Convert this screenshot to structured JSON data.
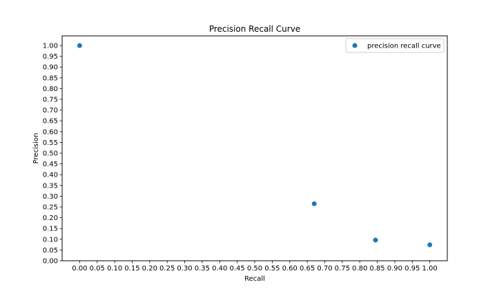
{
  "chart_data": {
    "type": "scatter",
    "title": "Precision Recall Curve",
    "xlabel": "Recall",
    "ylabel": "Precision",
    "xlim": [
      -0.05,
      1.05
    ],
    "ylim": [
      0.0,
      1.045
    ],
    "xticks": [
      "0.00",
      "0.05",
      "0.10",
      "0.15",
      "0.20",
      "0.25",
      "0.30",
      "0.35",
      "0.40",
      "0.45",
      "0.50",
      "0.55",
      "0.60",
      "0.65",
      "0.70",
      "0.75",
      "0.80",
      "0.85",
      "0.90",
      "0.95",
      "1.00"
    ],
    "yticks": [
      "0.00",
      "0.05",
      "0.10",
      "0.15",
      "0.20",
      "0.25",
      "0.30",
      "0.35",
      "0.40",
      "0.45",
      "0.50",
      "0.55",
      "0.60",
      "0.65",
      "0.70",
      "0.75",
      "0.80",
      "0.85",
      "0.90",
      "0.95",
      "1.00"
    ],
    "grid": false,
    "legend_position": "top-right",
    "series": [
      {
        "name": "precision recall curve",
        "color": "#1f77b4",
        "x": [
          0.0,
          0.67,
          0.845,
          1.0
        ],
        "y": [
          1.0,
          0.265,
          0.096,
          0.074
        ]
      }
    ]
  }
}
